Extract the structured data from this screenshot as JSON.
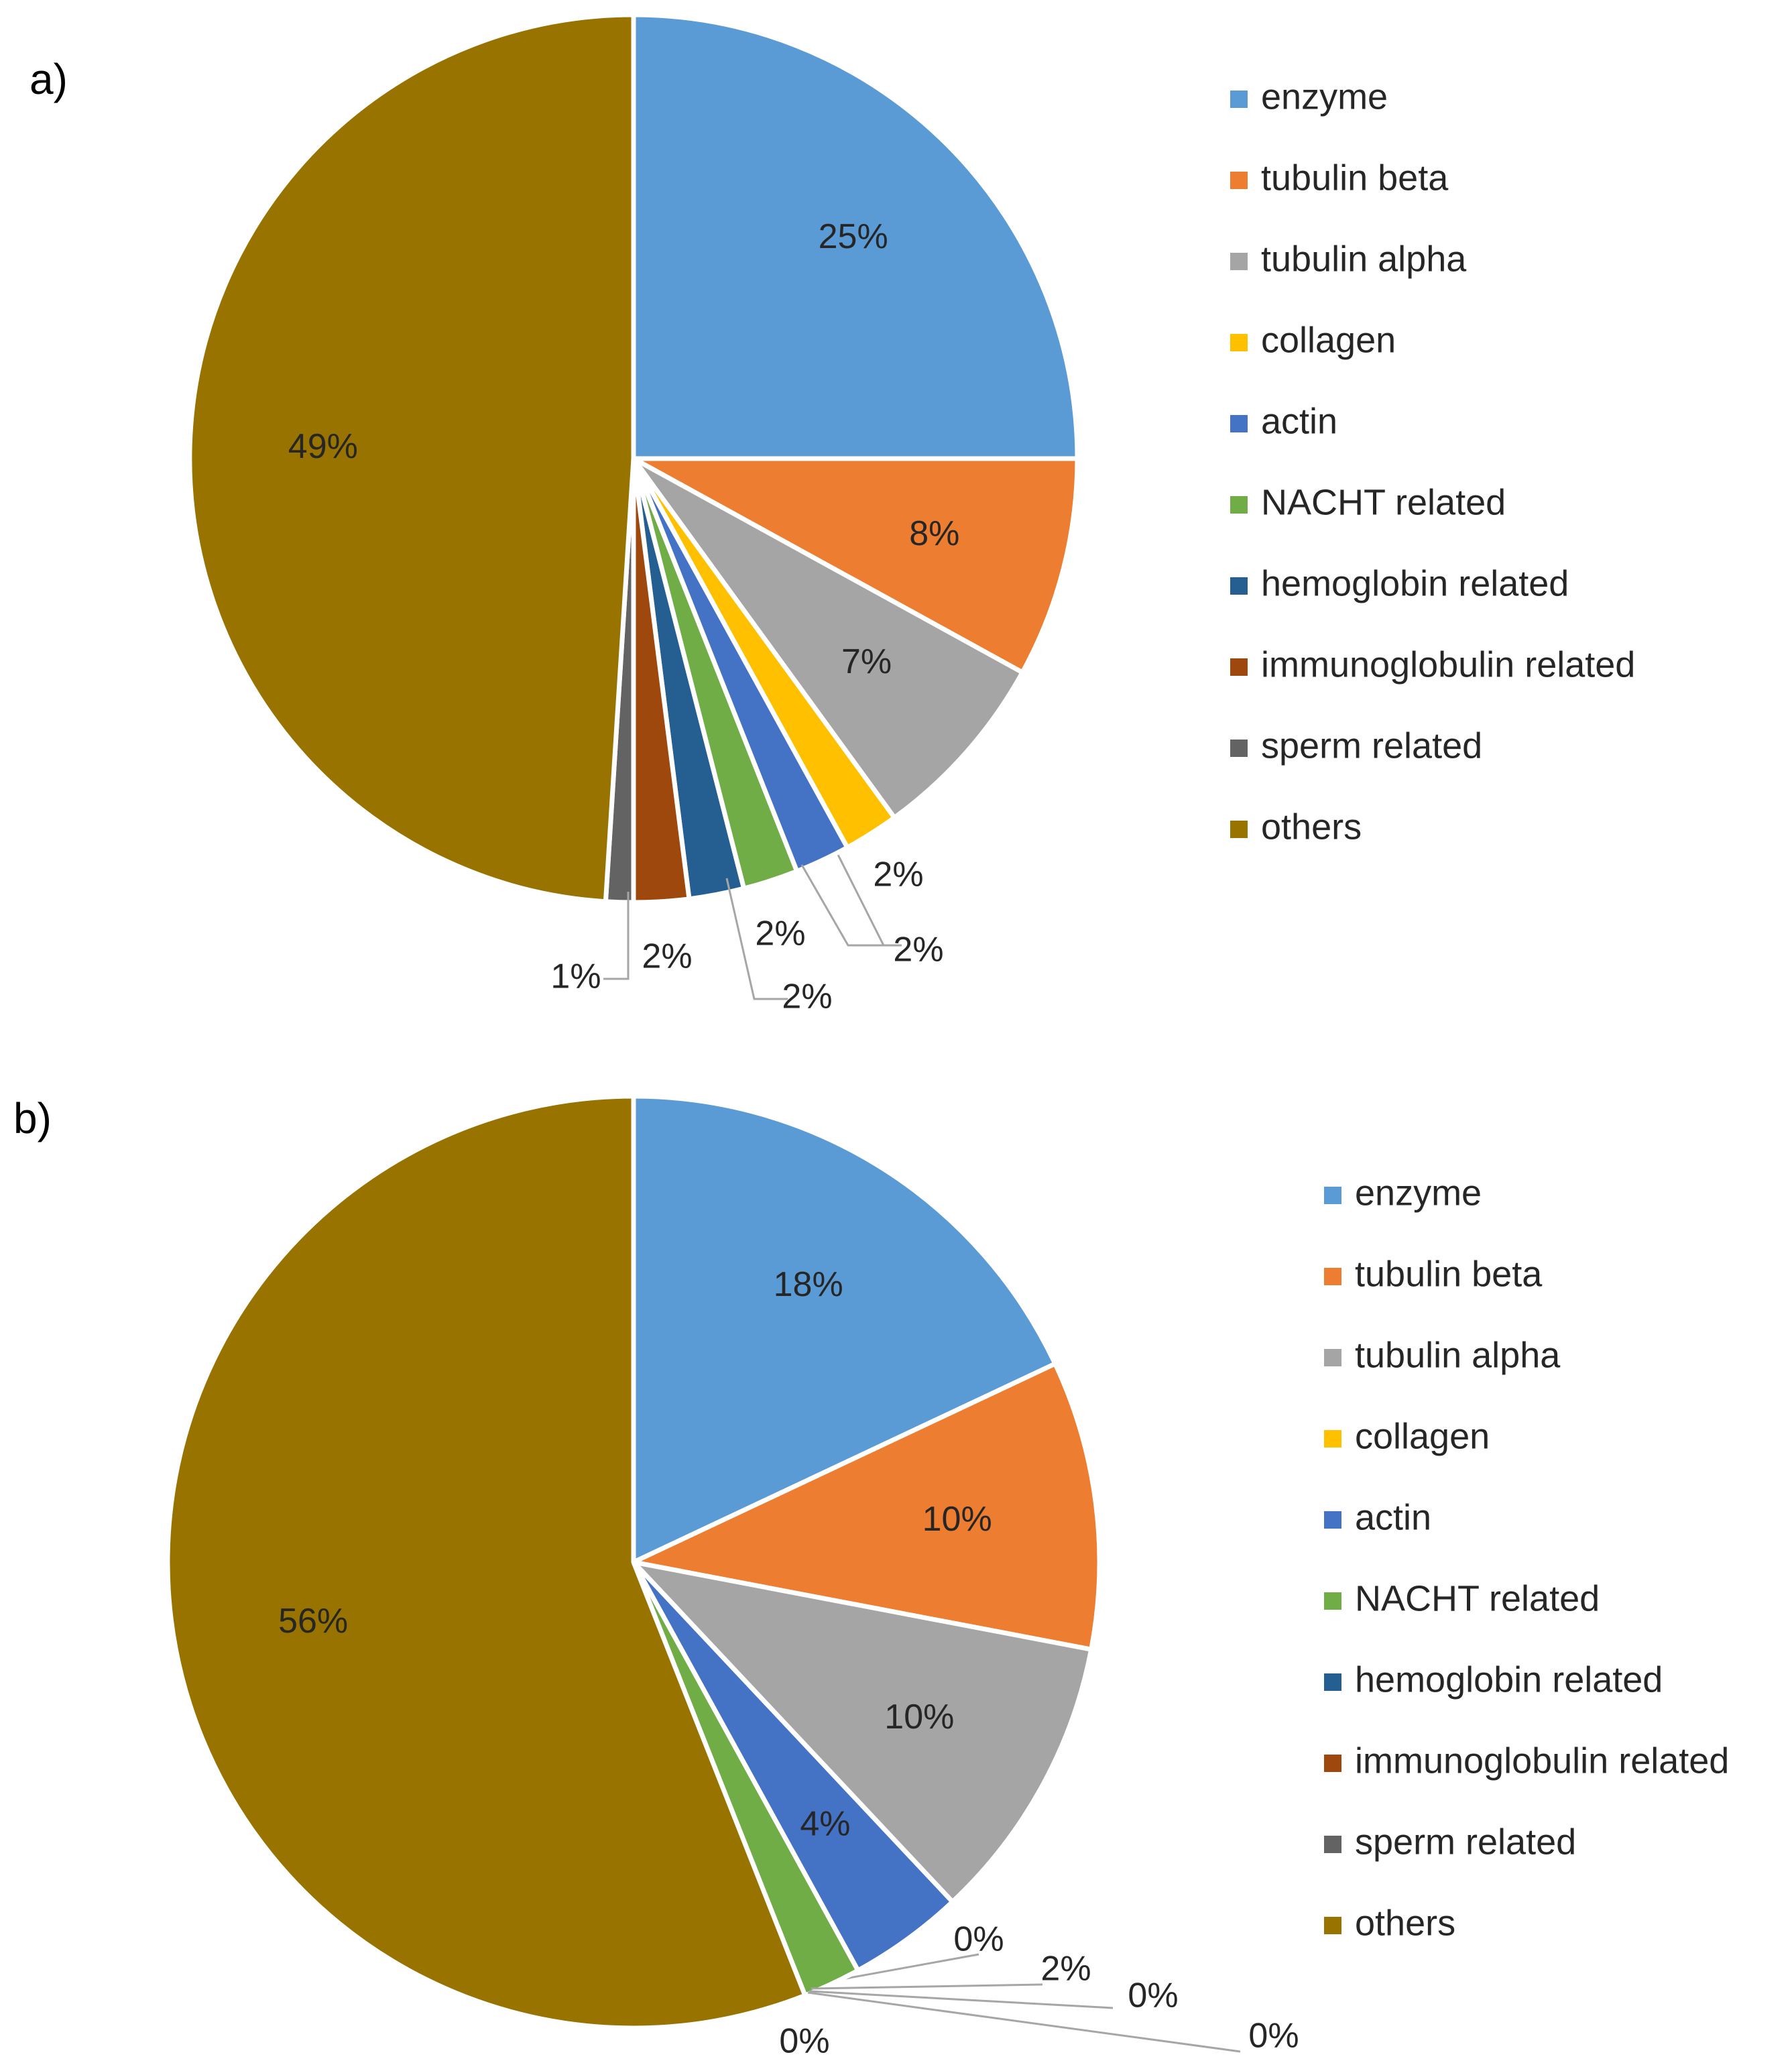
{
  "chart_data": [
    {
      "type": "pie",
      "panel_label": "a)",
      "legend_position": "right",
      "series_colors": [
        "#5B9BD5",
        "#ED7D31",
        "#A5A5A5",
        "#FFC000",
        "#4472C4",
        "#70AD47",
        "#255E91",
        "#9E480E",
        "#636363",
        "#997300"
      ],
      "slices": [
        {
          "label": "enzyme",
          "value": 25,
          "text": "25%"
        },
        {
          "label": "tubulin beta",
          "value": 8,
          "text": "8%"
        },
        {
          "label": "tubulin alpha",
          "value": 7,
          "text": "7%"
        },
        {
          "label": "collagen",
          "value": 2,
          "text": "2%"
        },
        {
          "label": "actin",
          "value": 2,
          "text": "2%"
        },
        {
          "label": "NACHT related",
          "value": 2,
          "text": "2%"
        },
        {
          "label": "hemoglobin related",
          "value": 2,
          "text": "2%"
        },
        {
          "label": "immunoglobulin related",
          "value": 2,
          "text": "2%"
        },
        {
          "label": "sperm related",
          "value": 1,
          "text": "1%"
        },
        {
          "label": "others",
          "value": 49,
          "text": "49%"
        }
      ]
    },
    {
      "type": "pie",
      "panel_label": "b)",
      "legend_position": "right",
      "series_colors": [
        "#5B9BD5",
        "#ED7D31",
        "#A5A5A5",
        "#FFC000",
        "#4472C4",
        "#70AD47",
        "#255E91",
        "#9E480E",
        "#636363",
        "#997300"
      ],
      "slices": [
        {
          "label": "enzyme",
          "value": 18,
          "text": "18%"
        },
        {
          "label": "tubulin beta",
          "value": 10,
          "text": "10%"
        },
        {
          "label": "tubulin alpha",
          "value": 10,
          "text": "10%"
        },
        {
          "label": "collagen",
          "value": 0,
          "text": "0%"
        },
        {
          "label": "actin",
          "value": 4,
          "text": "4%"
        },
        {
          "label": "NACHT related",
          "value": 2,
          "text": "2%"
        },
        {
          "label": "hemoglobin related",
          "value": 0,
          "text": "0%"
        },
        {
          "label": "immunoglobulin related",
          "value": 0,
          "text": "0%"
        },
        {
          "label": "sperm related",
          "value": 0,
          "text": "0%"
        },
        {
          "label": "others",
          "value": 56,
          "text": "56%"
        }
      ]
    }
  ]
}
